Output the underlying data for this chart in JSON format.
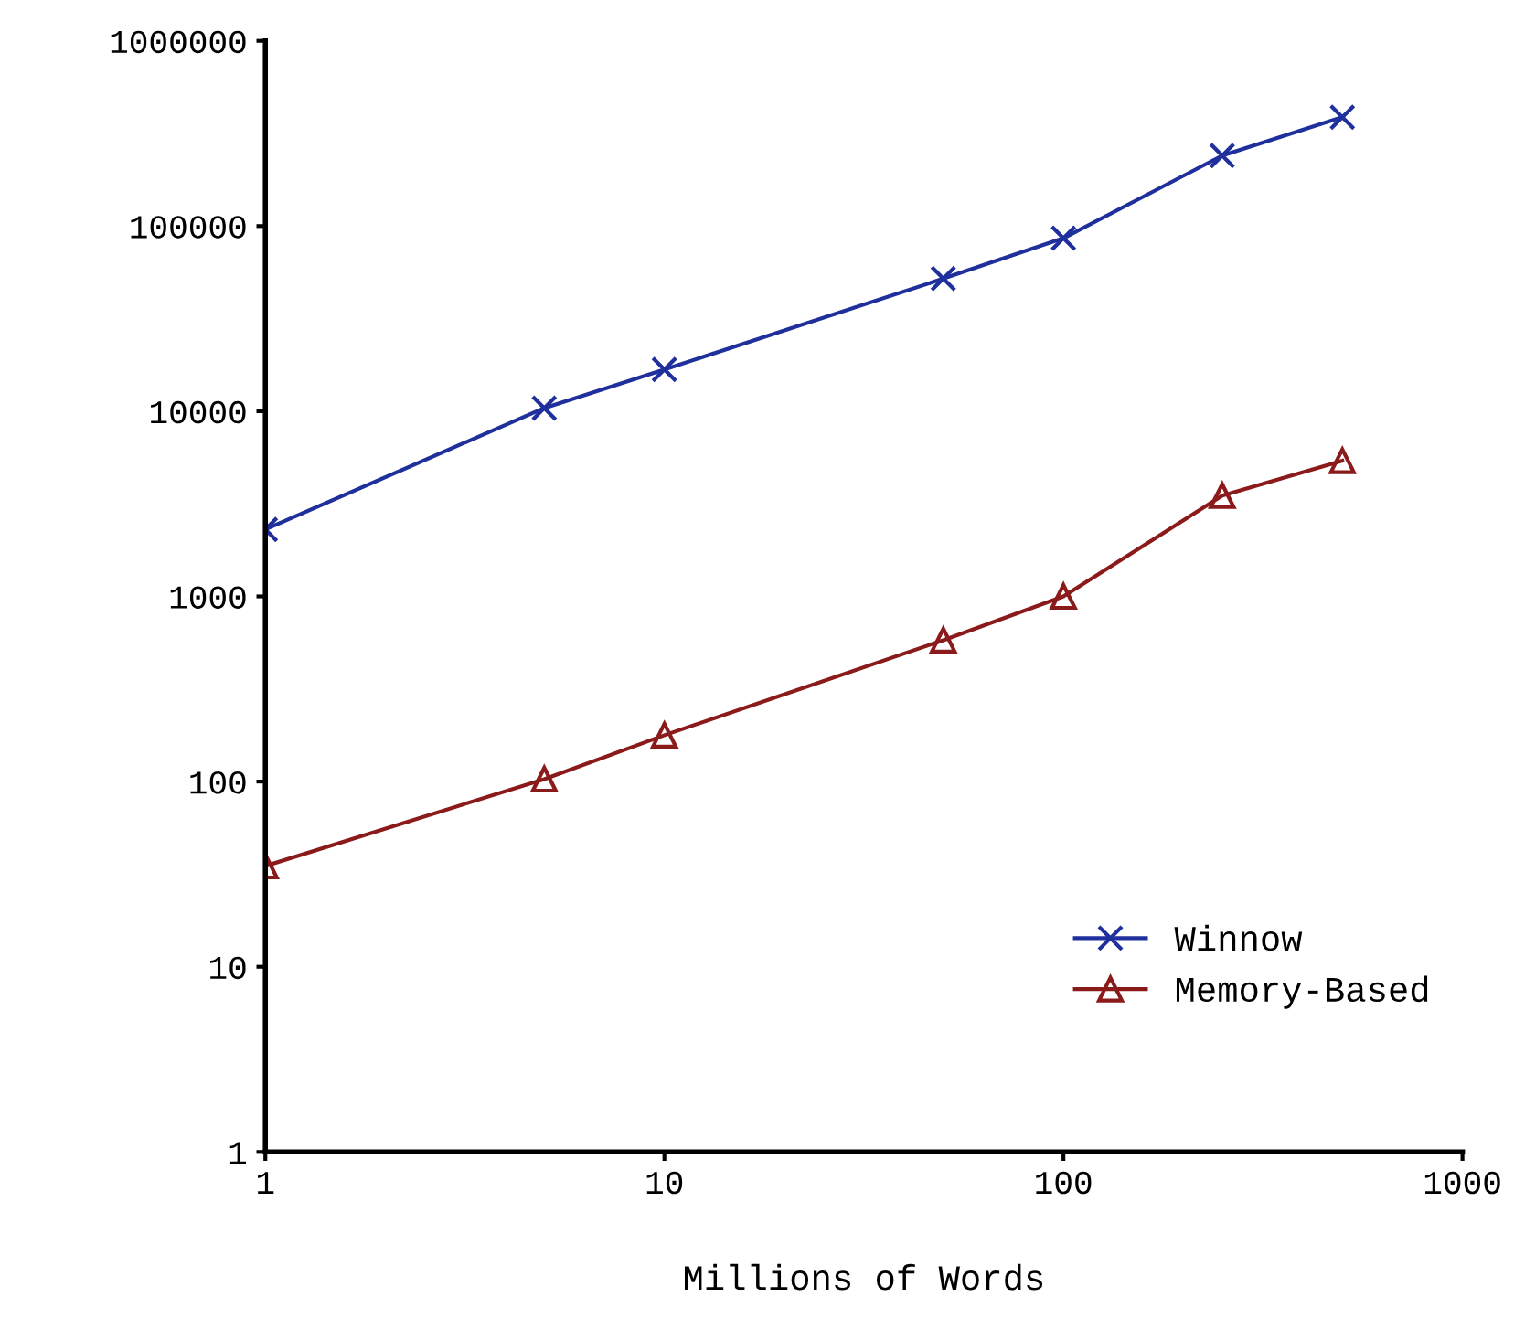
{
  "chart_data": {
    "type": "line",
    "xlabel": "Millions of Words",
    "log": "xy",
    "x": [
      1,
      5,
      10,
      50,
      100,
      250,
      500
    ],
    "series": [
      {
        "name": "Winnow",
        "color": "#1f2f9c",
        "marker": "cross",
        "values": [
          2300,
          10400,
          16800,
          52000,
          86000,
          240000,
          387000
        ]
      },
      {
        "name": "Memory-Based",
        "color": "#8b1a1a",
        "marker": "triangle",
        "values": [
          35,
          103,
          178,
          580,
          1000,
          3500,
          5400
        ]
      }
    ],
    "xlim": [
      1,
      1000
    ],
    "xticks": [
      1,
      10,
      100,
      1000
    ],
    "ylim": [
      1,
      1000000
    ],
    "yticks": [
      1,
      10,
      100,
      1000,
      10000,
      100000,
      1000000
    ],
    "grid": false,
    "legend": "bottom right",
    "line_style": "solid"
  }
}
